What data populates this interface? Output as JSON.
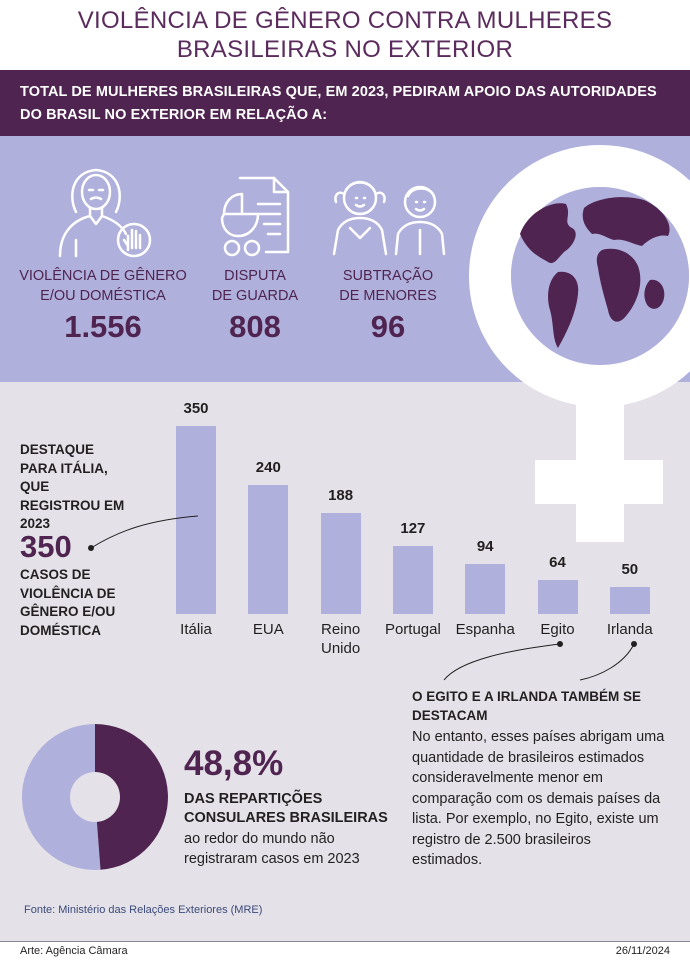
{
  "header": {
    "title_line1": "VIOLÊNCIA DE GÊNERO CONTRA MULHERES",
    "title_line2": "BRASILEIRAS NO EXTERIOR",
    "subtitle_line1": "TOTAL DE MULHERES BRASILEIRAS QUE, EM 2023, PEDIRAM APOIO DAS AUTORIDADES",
    "subtitle_line2": "DO BRASIL NO EXTERIOR EM RELAÇÃO A:"
  },
  "stats": [
    {
      "label_line1": "VIOLÊNCIA DE GÊNERO",
      "label_line2": "E/OU DOMÉSTICA",
      "value": "1.556",
      "icon": "woman-stop-hand-icon"
    },
    {
      "label_line1": "DISPUTA",
      "label_line2": "DE GUARDA",
      "value": "808",
      "icon": "stroller-document-icon"
    },
    {
      "label_line1": "SUBTRAÇÃO",
      "label_line2": "DE MENORES",
      "value": "96",
      "icon": "children-icon"
    }
  ],
  "decor": {
    "symbol": "female-symbol-globe-icon"
  },
  "chart_data": {
    "type": "bar",
    "categories": [
      "Itália",
      "EUA",
      "Reino Unido",
      "Portugal",
      "Espanha",
      "Egito",
      "Irlanda"
    ],
    "category_lines": [
      [
        "Itália"
      ],
      [
        "EUA"
      ],
      [
        "Reino",
        "Unido"
      ],
      [
        "Portugal"
      ],
      [
        "Espanha"
      ],
      [
        "Egito"
      ],
      [
        "Irlanda"
      ]
    ],
    "values": [
      350,
      240,
      188,
      127,
      94,
      64,
      50
    ],
    "value_labels": [
      "350",
      "240",
      "188",
      "127",
      "94",
      "64",
      "50"
    ],
    "title": "",
    "xlabel": "",
    "ylabel": "",
    "ylim": [
      0,
      350
    ],
    "grid": false,
    "color": "#b0b0dc"
  },
  "highlight_italy": {
    "lines_top": [
      "DESTAQUE",
      "PARA ITÁLIA,",
      "QUE",
      "REGISTROU EM",
      "2023"
    ],
    "big_value": "350",
    "lines_bottom": [
      "CASOS DE",
      "VIOLÊNCIA DE",
      "GÊNERO E/OU",
      "DOMÉSTICA"
    ]
  },
  "highlight_egypt_ireland": {
    "title_line1": "O EGITO E A IRLANDA TAMBÉM  SE",
    "title_line2": "DESTACAM",
    "body_lines": [
      "No entanto, esses países abrigam uma",
      "quantidade de brasileiros estimados",
      "consideravelmente menor em",
      "comparação com os demais países da",
      "lista. Por exemplo, no Egito, existe um",
      "registro de 2.500 brasileiros",
      "estimados."
    ]
  },
  "donut": {
    "percent_label": "48,8%",
    "percent_value": 48.8,
    "line1": "DAS REPARTIÇÕES",
    "line2": "CONSULARES BRASILEIRAS",
    "line3": "ao redor do mundo não",
    "line4": "registraram casos em 2023",
    "color_highlight": "#4f2450",
    "color_rest": "#b0b0dc"
  },
  "footer": {
    "source": "Fonte: Ministério das Relações Exteriores (MRE)",
    "credit": "Arte: Agência Câmara",
    "date": "26/11/2024"
  },
  "colors": {
    "purple_dark": "#4f2450",
    "lavender": "#b0b0dc",
    "background": "#e4e2e8"
  }
}
